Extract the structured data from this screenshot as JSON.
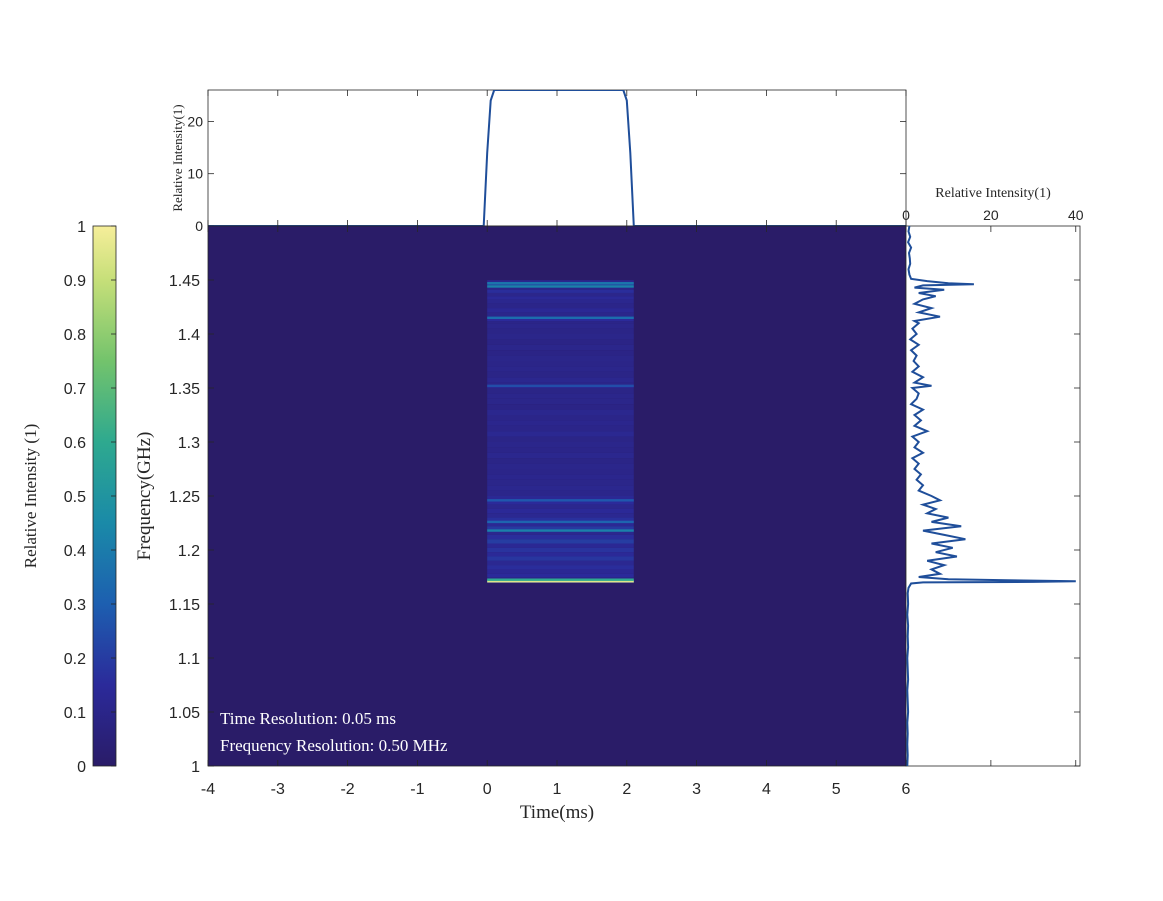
{
  "colors": {
    "background_map": "#2a1c68",
    "profile_line": "#1f4e9a",
    "axis": "#262626"
  },
  "annotations": {
    "time_resolution": "Time Resolution: 0.05 ms",
    "frequency_resolution": "Frequency Resolution: 0.50 MHz"
  },
  "chart_data": [
    {
      "id": "dynamic-spectrum",
      "type": "heatmap",
      "xlabel": "Time(ms)",
      "ylabel": "Frequency(GHz)",
      "xlim": [
        -4,
        6
      ],
      "ylim": [
        1.0,
        1.5
      ],
      "xticks": [
        -4,
        -3,
        -2,
        -1,
        0,
        1,
        2,
        3,
        4,
        5,
        6
      ],
      "yticks": [
        1,
        1.05,
        1.1,
        1.15,
        1.2,
        1.25,
        1.3,
        1.35,
        1.4,
        1.45
      ],
      "ytick_labels": [
        "1",
        "1.05",
        "1.1",
        "1.15",
        "1.2",
        "1.25",
        "1.3",
        "1.35",
        "1.4",
        "1.45"
      ],
      "colormap": "parula",
      "clim": [
        0,
        1
      ],
      "burst_time_range": [
        0,
        2.1
      ],
      "burst_freq_range": [
        1.17,
        1.45
      ],
      "bright_bands": [
        {
          "freq": 1.171,
          "value": 0.95
        },
        {
          "freq": 1.1725,
          "value": 0.6
        },
        {
          "freq": 1.218,
          "value": 0.42
        },
        {
          "freq": 1.226,
          "value": 0.32
        },
        {
          "freq": 1.246,
          "value": 0.28
        },
        {
          "freq": 1.352,
          "value": 0.25
        },
        {
          "freq": 1.415,
          "value": 0.35
        },
        {
          "freq": 1.444,
          "value": 0.42
        },
        {
          "freq": 1.447,
          "value": 0.38
        }
      ],
      "grid": false
    },
    {
      "id": "time-profile",
      "type": "line",
      "ylabel": "Relative Intensity(1)",
      "xlim": [
        -4,
        6
      ],
      "ylim": [
        0,
        26
      ],
      "yticks": [
        0,
        10,
        20
      ],
      "x": [
        -4,
        -0.05,
        0.0,
        0.05,
        0.1,
        1.0,
        1.95,
        2.0,
        2.05,
        2.1,
        6
      ],
      "y": [
        0,
        0,
        14,
        24,
        26,
        26,
        26,
        24,
        14,
        0,
        0
      ]
    },
    {
      "id": "frequency-profile",
      "type": "line",
      "xlabel": "Relative Intensity(1)",
      "xlim": [
        0,
        41
      ],
      "xticks": [
        0,
        20,
        40
      ],
      "ylim": [
        1.0,
        1.5
      ],
      "freq": [
        1.5,
        1.495,
        1.49,
        1.485,
        1.48,
        1.475,
        1.47,
        1.465,
        1.46,
        1.455,
        1.451,
        1.449,
        1.447,
        1.446,
        1.445,
        1.443,
        1.441,
        1.438,
        1.435,
        1.432,
        1.428,
        1.424,
        1.42,
        1.416,
        1.412,
        1.41,
        1.405,
        1.4,
        1.395,
        1.39,
        1.385,
        1.38,
        1.375,
        1.37,
        1.365,
        1.36,
        1.355,
        1.352,
        1.35,
        1.345,
        1.34,
        1.335,
        1.33,
        1.325,
        1.32,
        1.315,
        1.31,
        1.305,
        1.3,
        1.295,
        1.29,
        1.285,
        1.28,
        1.275,
        1.27,
        1.265,
        1.26,
        1.255,
        1.25,
        1.246,
        1.242,
        1.238,
        1.234,
        1.23,
        1.226,
        1.222,
        1.218,
        1.214,
        1.21,
        1.206,
        1.202,
        1.198,
        1.194,
        1.19,
        1.186,
        1.182,
        1.178,
        1.175,
        1.173,
        1.172,
        1.171,
        1.1705,
        1.17,
        1.169,
        1.165,
        1.16,
        1.15,
        1.14,
        1.13,
        1.12,
        1.11,
        1.1,
        1.09,
        1.08,
        1.07,
        1.06,
        1.05,
        1.04,
        1.03,
        1.02,
        1.01,
        1.0
      ],
      "intensity": [
        0.8,
        0.6,
        1.0,
        0.5,
        1.2,
        0.7,
        0.9,
        1.0,
        0.6,
        0.8,
        1.2,
        5,
        10,
        16,
        4,
        2,
        9,
        3,
        7,
        4,
        2,
        6,
        3,
        8,
        2,
        3,
        1.5,
        2.5,
        1,
        3,
        1.2,
        2.5,
        1.8,
        3,
        1.5,
        4,
        2,
        6,
        1.5,
        3,
        2.5,
        1.2,
        4,
        2,
        3.5,
        2,
        5,
        1.5,
        3,
        2,
        4,
        1.5,
        3,
        2,
        3.5,
        2.5,
        4,
        3,
        6,
        8,
        4,
        7,
        5,
        10,
        6,
        13,
        4,
        9,
        14,
        6,
        11,
        7,
        12,
        5,
        9,
        6,
        8,
        3,
        10,
        24,
        40,
        30,
        4,
        1.2,
        0.6,
        0.4,
        0.5,
        0.3,
        0.5,
        0.4,
        0.5,
        0.3,
        0.4,
        0.5,
        0.3,
        0.4,
        0.5,
        0.3,
        0.4,
        0.3,
        0.4,
        0.3
      ]
    },
    {
      "id": "colorbar",
      "type": "heatmap",
      "label": "Relative Intensity (1)",
      "clim": [
        0,
        1
      ],
      "ticks": [
        0,
        0.1,
        0.2,
        0.3,
        0.4,
        0.5,
        0.6,
        0.7,
        0.8,
        0.9,
        1
      ],
      "tick_labels": [
        "0",
        "0.1",
        "0.2",
        "0.3",
        "0.4",
        "0.5",
        "0.6",
        "0.7",
        "0.8",
        "0.9",
        "1"
      ]
    }
  ]
}
